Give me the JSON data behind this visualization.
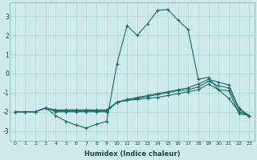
{
  "xlabel": "Humidex (Indice chaleur)",
  "ylabel": "",
  "background_color": "#ceeaea",
  "grid_color": "#b8d8d8",
  "line_color": "#1a6b6b",
  "x": [
    0,
    1,
    2,
    3,
    4,
    5,
    6,
    7,
    8,
    9,
    10,
    11,
    12,
    13,
    14,
    15,
    16,
    17,
    18,
    19,
    20,
    21,
    22,
    23
  ],
  "series1": [
    -2.0,
    -2.0,
    -2.0,
    -1.8,
    -2.2,
    -2.5,
    -2.7,
    -2.85,
    -2.65,
    -2.5,
    0.5,
    2.5,
    2.0,
    2.6,
    3.3,
    3.35,
    2.8,
    2.3,
    -0.3,
    -0.2,
    -0.85,
    -1.3,
    -2.0,
    -2.2
  ],
  "series2": [
    -2.0,
    -2.0,
    -2.0,
    -1.8,
    -2.0,
    -2.0,
    -2.0,
    -2.0,
    -2.0,
    -2.0,
    -1.5,
    -1.4,
    -1.35,
    -1.3,
    -1.25,
    -1.15,
    -1.05,
    -0.95,
    -0.85,
    -0.55,
    -0.85,
    -0.9,
    -2.1,
    -2.2
  ],
  "series3": [
    -2.0,
    -2.0,
    -2.0,
    -1.8,
    -1.95,
    -1.95,
    -1.95,
    -1.95,
    -1.95,
    -1.95,
    -1.5,
    -1.4,
    -1.3,
    -1.2,
    -1.1,
    -1.0,
    -0.9,
    -0.85,
    -0.7,
    -0.4,
    -0.65,
    -0.75,
    -1.9,
    -2.2
  ],
  "series4": [
    -2.0,
    -2.0,
    -2.0,
    -1.8,
    -1.9,
    -1.9,
    -1.9,
    -1.9,
    -1.9,
    -1.9,
    -1.5,
    -1.35,
    -1.25,
    -1.15,
    -1.05,
    -0.95,
    -0.85,
    -0.75,
    -0.55,
    -0.3,
    -0.45,
    -0.6,
    -1.8,
    -2.2
  ],
  "xlim": [
    -0.5,
    23.5
  ],
  "ylim": [
    -3.5,
    3.7
  ],
  "yticks": [
    -3,
    -2,
    -1,
    0,
    1,
    2,
    3
  ],
  "xticks": [
    0,
    1,
    2,
    3,
    4,
    5,
    6,
    7,
    8,
    9,
    10,
    11,
    12,
    13,
    14,
    15,
    16,
    17,
    18,
    19,
    20,
    21,
    22,
    23
  ]
}
